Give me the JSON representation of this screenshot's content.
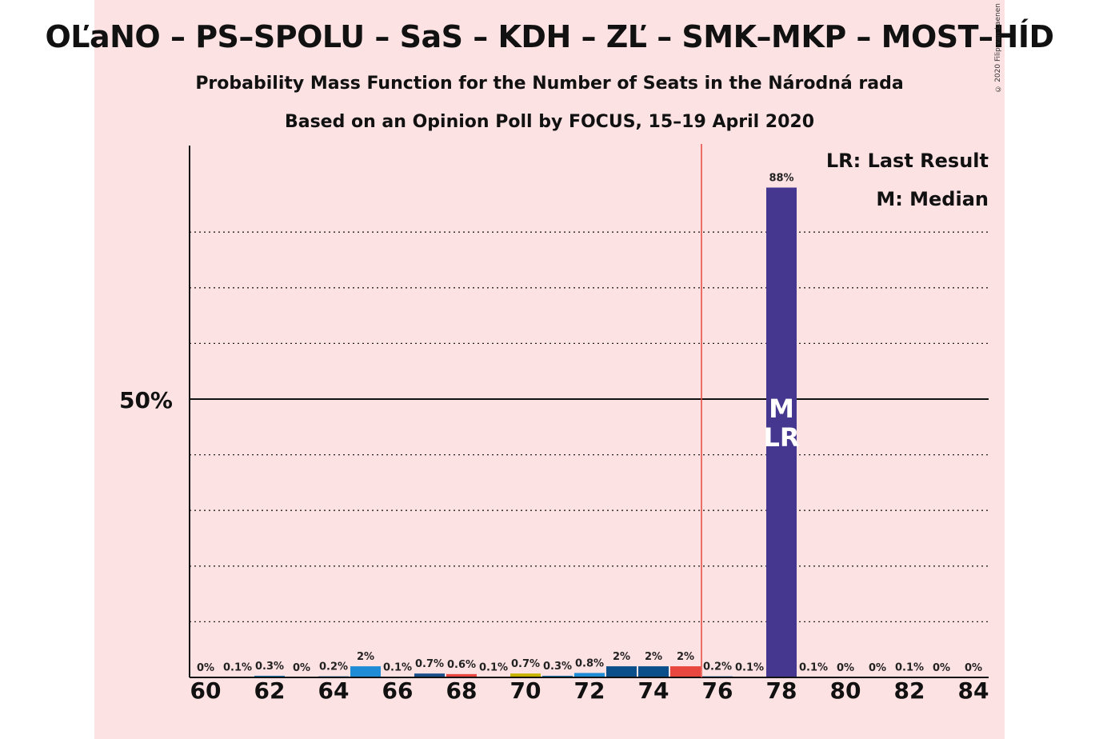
{
  "title": "OĽaNO – PS–SPOLU – SaS – KDH – ZĽ – SMK–MKP – MOST–HÍD",
  "subtitle1": "Probability Mass Function for the Number of Seats in the Národná rada",
  "subtitle2": "Based on an Opinion Poll by FOCUS, 15–19 April 2020",
  "copyright": "© 2020 Filip van Laenen",
  "chart_data": {
    "type": "bar",
    "x": [
      60,
      61,
      62,
      63,
      64,
      65,
      66,
      67,
      68,
      69,
      70,
      71,
      72,
      73,
      74,
      75,
      76,
      77,
      78,
      79,
      80,
      81,
      82,
      83,
      84
    ],
    "values": [
      0,
      0.1,
      0.3,
      0,
      0.2,
      2,
      0.1,
      0.7,
      0.6,
      0.1,
      0.7,
      0.3,
      0.8,
      2,
      2,
      2,
      0.2,
      0.1,
      88,
      0.1,
      0,
      0,
      0.1,
      0,
      0
    ],
    "labels": [
      "0%",
      "0.1%",
      "0.3%",
      "0%",
      "0.2%",
      "2%",
      "0.1%",
      "0.7%",
      "0.6%",
      "0.1%",
      "0.7%",
      "0.3%",
      "0.8%",
      "2%",
      "2%",
      "2%",
      "0.2%",
      "0.1%",
      "88%",
      "0.1%",
      "0%",
      "0%",
      "0.1%",
      "0%",
      "0%"
    ],
    "colors": [
      "#1f77b4",
      "#1f77b4",
      "#1f77b4",
      "#1f77b4",
      "#1f77b4",
      "#1f8dd6",
      "#1f77b4",
      "#1a4f8a",
      "#e8473f",
      "#1f77b4",
      "#c6b400",
      "#1f77b4",
      "#1f8dd6",
      "#0b4f8a",
      "#0b4f8a",
      "#e8473f",
      "#1f77b4",
      "#1f77b4",
      "#45378f",
      "#1f77b4",
      "#1f77b4",
      "#1f77b4",
      "#1f77b4",
      "#1f77b4",
      "#1f77b4"
    ],
    "xticks": [
      60,
      62,
      64,
      66,
      68,
      70,
      72,
      74,
      76,
      78,
      80,
      82,
      84
    ],
    "ytick_label": "50%",
    "ytick_value": 50,
    "ylim": [
      0,
      96
    ],
    "gridlines": [
      10,
      20,
      30,
      40,
      60,
      70,
      80
    ],
    "majority_line": 75.5,
    "majority_color": "#e8473f",
    "median": 78,
    "last_result": 78,
    "median_marker": "M",
    "last_result_marker": "LR",
    "legend": [
      "LR: Last Result",
      "M: Median"
    ],
    "legend_position": "top-right"
  }
}
